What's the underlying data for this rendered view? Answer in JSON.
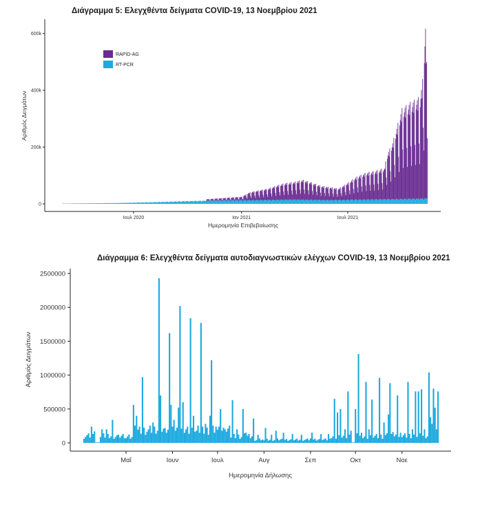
{
  "chart_data": [
    {
      "type": "bar",
      "title": "Διάγραμμα 5: Ελεγχθέντα δείγματα COVID-19, 13 Νοεμβρίου 2021",
      "xlabel": "Ημερομηνία Επιβεβαίωσης",
      "ylabel": "Αριθμός Δειγμάτων",
      "ylim": [
        0,
        650000
      ],
      "yticks": [
        0,
        200000,
        400000,
        600000
      ],
      "ytick_labels": [
        "0",
        "200k",
        "400k",
        "600k"
      ],
      "xticks": [
        "2020-07-01",
        "2021-01-01",
        "2021-07-01"
      ],
      "xtick_labels": [
        "Ιουλ 2020",
        "Ιαν 2021",
        "Ιουλ 2021"
      ],
      "x_range": [
        "2020-03-01",
        "2021-11-13"
      ],
      "stacked": true,
      "legend": "top-left",
      "grid": false,
      "series": [
        {
          "name": "RAPID-AG",
          "color": "#6a2c91",
          "points": [
            [
              "2020-11-01",
              5000
            ],
            [
              "2020-12-01",
              8000
            ],
            [
              "2021-01-01",
              12000
            ],
            [
              "2021-01-15",
              28000
            ],
            [
              "2021-02-01",
              35000
            ],
            [
              "2021-02-15",
              40000
            ],
            [
              "2021-03-01",
              50000
            ],
            [
              "2021-03-15",
              58000
            ],
            [
              "2021-04-01",
              62000
            ],
            [
              "2021-04-15",
              70000
            ],
            [
              "2021-05-01",
              60000
            ],
            [
              "2021-05-15",
              50000
            ],
            [
              "2021-06-01",
              45000
            ],
            [
              "2021-06-15",
              40000
            ],
            [
              "2021-07-01",
              60000
            ],
            [
              "2021-07-15",
              80000
            ],
            [
              "2021-08-01",
              95000
            ],
            [
              "2021-08-15",
              100000
            ],
            [
              "2021-09-01",
              110000
            ],
            [
              "2021-09-05",
              155000
            ],
            [
              "2021-09-15",
              200000
            ],
            [
              "2021-10-01",
              320000
            ],
            [
              "2021-10-15",
              340000
            ],
            [
              "2021-11-01",
              360000
            ],
            [
              "2021-11-05",
              420000
            ],
            [
              "2021-11-10",
              610000
            ],
            [
              "2021-11-12",
              480000
            ],
            [
              "2021-11-13",
              390000
            ]
          ]
        },
        {
          "name": "RT-PCR",
          "color": "#1eaadf",
          "points": [
            [
              "2020-03-01",
              1000
            ],
            [
              "2020-06-01",
              3000
            ],
            [
              "2020-08-01",
              6000
            ],
            [
              "2020-10-01",
              10000
            ],
            [
              "2020-12-01",
              13000
            ],
            [
              "2021-02-01",
              14000
            ],
            [
              "2021-04-01",
              16000
            ],
            [
              "2021-06-01",
              14000
            ],
            [
              "2021-08-01",
              16000
            ],
            [
              "2021-10-01",
              18000
            ],
            [
              "2021-11-13",
              20000
            ]
          ]
        }
      ]
    },
    {
      "type": "bar",
      "title": "Διάγραμμα 6: Ελεγχθέντα δείγματα αυτοδιαγνωστικών ελέγχων COVID-19, 13 Νοεμβρίου 2021",
      "xlabel": "Ημερομηνία Δήλωσης",
      "ylabel": "Αριθμός Δειγμάτων",
      "ylim": [
        0,
        2600000
      ],
      "yticks": [
        0,
        500000,
        1000000,
        1500000,
        2000000,
        2500000
      ],
      "ytick_labels": [
        "0",
        "500000",
        "1000000",
        "1500000",
        "2000000",
        "2500000"
      ],
      "xticks": [
        "2021-05-01",
        "2021-06-01",
        "2021-07-01",
        "2021-08-01",
        "2021-09-01",
        "2021-10-01",
        "2021-11-01"
      ],
      "xtick_labels": [
        "Μαΐ",
        "Ιουν",
        "Ιουλ",
        "Αυγ",
        "Σεπ",
        "Οκτ",
        "Νοε"
      ],
      "x_range": [
        "2021-04-03",
        "2021-11-25"
      ],
      "color": "#1eaadf",
      "grid": false,
      "peaks": [
        [
          "2021-04-08",
          240000
        ],
        [
          "2021-04-10",
          170000
        ],
        [
          "2021-04-15",
          200000
        ],
        [
          "2021-04-18",
          200000
        ],
        [
          "2021-04-22",
          340000
        ],
        [
          "2021-04-26",
          120000
        ],
        [
          "2021-05-06",
          560000
        ],
        [
          "2021-05-08",
          400000
        ],
        [
          "2021-05-12",
          970000
        ],
        [
          "2021-05-16",
          200000
        ],
        [
          "2021-05-19",
          300000
        ],
        [
          "2021-05-23",
          2430000
        ],
        [
          "2021-05-24",
          700000
        ],
        [
          "2021-05-27",
          220000
        ],
        [
          "2021-05-30",
          1620000
        ],
        [
          "2021-05-31",
          560000
        ],
        [
          "2021-06-02",
          340000
        ],
        [
          "2021-06-05",
          520000
        ],
        [
          "2021-06-06",
          2020000
        ],
        [
          "2021-06-08",
          600000
        ],
        [
          "2021-06-10",
          200000
        ],
        [
          "2021-06-13",
          1840000
        ],
        [
          "2021-06-15",
          400000
        ],
        [
          "2021-06-17",
          180000
        ],
        [
          "2021-06-20",
          1770000
        ],
        [
          "2021-06-23",
          280000
        ],
        [
          "2021-06-26",
          400000
        ],
        [
          "2021-06-27",
          1220000
        ],
        [
          "2021-06-30",
          240000
        ],
        [
          "2021-07-03",
          500000
        ],
        [
          "2021-07-06",
          200000
        ],
        [
          "2021-07-11",
          630000
        ],
        [
          "2021-07-14",
          200000
        ],
        [
          "2021-07-18",
          500000
        ],
        [
          "2021-07-20",
          150000
        ],
        [
          "2021-07-25",
          360000
        ],
        [
          "2021-07-28",
          120000
        ],
        [
          "2021-08-02",
          220000
        ],
        [
          "2021-08-06",
          120000
        ],
        [
          "2021-08-09",
          180000
        ],
        [
          "2021-08-14",
          150000
        ],
        [
          "2021-08-20",
          130000
        ],
        [
          "2021-08-26",
          120000
        ],
        [
          "2021-09-02",
          150000
        ],
        [
          "2021-09-08",
          130000
        ],
        [
          "2021-09-13",
          130000
        ],
        [
          "2021-09-17",
          650000
        ],
        [
          "2021-09-19",
          450000
        ],
        [
          "2021-09-21",
          500000
        ],
        [
          "2021-09-24",
          200000
        ],
        [
          "2021-09-26",
          760000
        ],
        [
          "2021-09-28",
          180000
        ],
        [
          "2021-10-01",
          500000
        ],
        [
          "2021-10-03",
          1310000
        ],
        [
          "2021-10-05",
          150000
        ],
        [
          "2021-10-08",
          900000
        ],
        [
          "2021-10-10",
          200000
        ],
        [
          "2021-10-12",
          640000
        ],
        [
          "2021-10-17",
          960000
        ],
        [
          "2021-10-20",
          300000
        ],
        [
          "2021-10-23",
          420000
        ],
        [
          "2021-10-24",
          880000
        ],
        [
          "2021-10-26",
          160000
        ],
        [
          "2021-10-29",
          700000
        ],
        [
          "2021-10-31",
          150000
        ],
        [
          "2021-11-05",
          900000
        ],
        [
          "2021-11-08",
          200000
        ],
        [
          "2021-11-10",
          760000
        ],
        [
          "2021-11-12",
          760000
        ],
        [
          "2021-11-14",
          790000
        ],
        [
          "2021-11-16",
          200000
        ],
        [
          "2021-11-19",
          1040000
        ],
        [
          "2021-11-20",
          380000
        ],
        [
          "2021-11-21",
          280000
        ],
        [
          "2021-11-22",
          800000
        ],
        [
          "2021-11-23",
          520000
        ],
        [
          "2021-11-24",
          200000
        ],
        [
          "2021-11-25",
          760000
        ]
      ]
    }
  ],
  "legend": {
    "items": [
      {
        "label": "RAPID-AG",
        "color": "#6a2c91"
      },
      {
        "label": "RT-PCR",
        "color": "#1eaadf"
      }
    ]
  }
}
